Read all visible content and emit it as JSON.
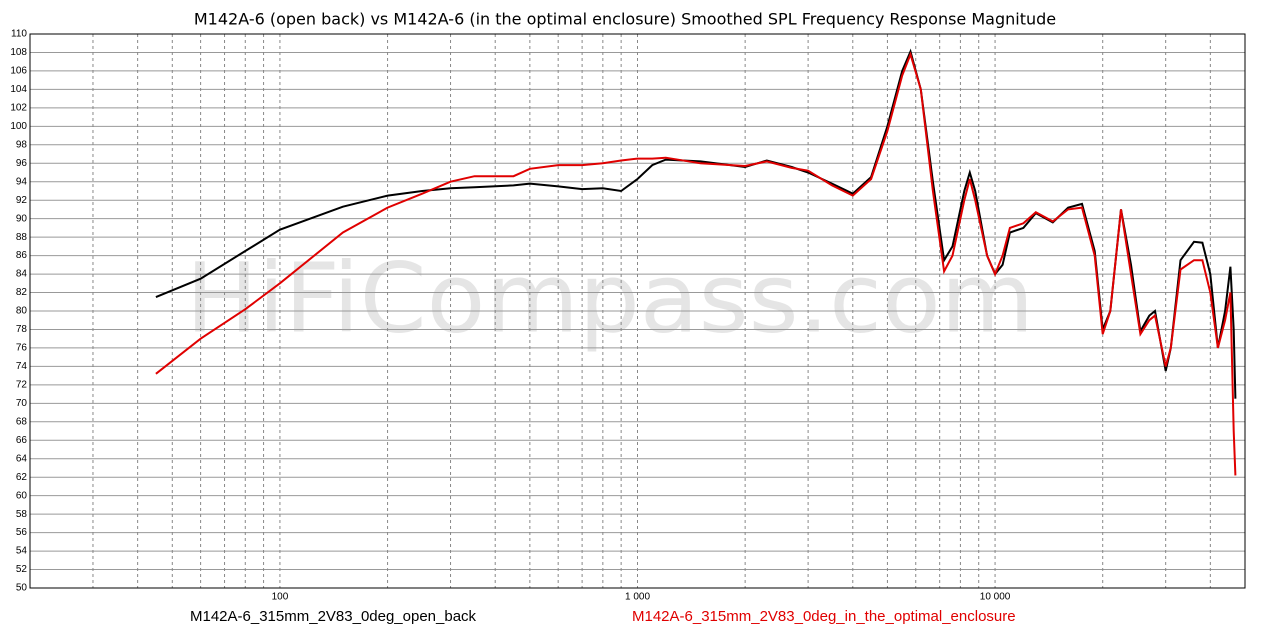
{
  "chart_data": {
    "type": "line",
    "title": "M142A-6 (open back) vs M142A-6 (in the optimal enclosure)   Smoothed SPL Frequency Response Magnitude",
    "watermark": "HiFiCompass.com",
    "log_x": true,
    "grid": true,
    "xlim": [
      20,
      50000
    ],
    "ylim": [
      50,
      110
    ],
    "xticks": [
      {
        "value": 100,
        "label": "100"
      },
      {
        "value": 1000,
        "label": "1 000"
      },
      {
        "value": 10000,
        "label": "10 000"
      }
    ],
    "xminor_ticks": [
      20,
      30,
      40,
      50,
      60,
      70,
      80,
      90,
      200,
      300,
      400,
      500,
      600,
      700,
      800,
      900,
      2000,
      3000,
      4000,
      5000,
      6000,
      7000,
      8000,
      9000,
      20000,
      30000,
      40000
    ],
    "yticks": [
      50,
      52,
      54,
      56,
      58,
      60,
      62,
      64,
      66,
      68,
      70,
      72,
      74,
      76,
      78,
      80,
      82,
      84,
      86,
      88,
      90,
      92,
      94,
      96,
      98,
      100,
      102,
      104,
      106,
      108,
      110
    ],
    "x": [
      45,
      60,
      80,
      100,
      150,
      200,
      250,
      300,
      350,
      450,
      500,
      600,
      700,
      800,
      900,
      1000,
      1100,
      1200,
      1500,
      2000,
      2300,
      2700,
      3000,
      3500,
      4000,
      4500,
      5000,
      5500,
      5800,
      6200,
      6700,
      7200,
      7600,
      8200,
      8500,
      8800,
      9500,
      10000,
      10500,
      11000,
      12000,
      13000,
      14500,
      16000,
      17500,
      19000,
      20000,
      21000,
      22500,
      24000,
      25500,
      27000,
      28000,
      30000,
      31000,
      33000,
      36000,
      38000,
      40000,
      42000,
      44000,
      45500,
      46500,
      47000
    ],
    "series": [
      {
        "name": "M142A-6_315mm_2V83_0deg_open_back",
        "color": "#000000",
        "values": [
          81.5,
          83.5,
          86.5,
          88.8,
          91.3,
          92.5,
          93.0,
          93.3,
          93.4,
          93.6,
          93.8,
          93.5,
          93.2,
          93.3,
          93.0,
          94.3,
          95.8,
          96.4,
          96.2,
          95.6,
          96.3,
          95.6,
          95.0,
          93.8,
          92.7,
          94.5,
          100,
          106,
          108.1,
          104,
          94,
          85.5,
          87,
          93,
          95,
          93,
          86,
          84,
          85,
          88.5,
          89,
          90.6,
          89.6,
          91.2,
          91.6,
          86.5,
          78,
          80,
          91,
          85,
          77.8,
          79.5,
          80,
          73.5,
          76,
          85.5,
          87.5,
          87.4,
          84,
          76,
          80,
          84.8,
          78,
          70.5
        ]
      },
      {
        "name": "M142A-6_315mm_2V83_0deg_in_the_optimal_enclosure",
        "color": "#e00000",
        "values": [
          73.2,
          77,
          80.2,
          83,
          88.5,
          91.2,
          92.7,
          94,
          94.6,
          94.6,
          95.4,
          95.8,
          95.8,
          96.0,
          96.3,
          96.5,
          96.5,
          96.6,
          96.0,
          95.7,
          96.2,
          95.5,
          95.2,
          93.6,
          92.5,
          94.3,
          99.5,
          105.5,
          107.8,
          104,
          93,
          84.3,
          86,
          92,
          94.3,
          92,
          86,
          84,
          86,
          89,
          89.5,
          90.7,
          89.7,
          91,
          91.2,
          86,
          77.5,
          80,
          91,
          84,
          77.5,
          79,
          79.5,
          74,
          76,
          84.5,
          85.5,
          85.5,
          82,
          76,
          79,
          82,
          67,
          62.2
        ]
      }
    ]
  }
}
